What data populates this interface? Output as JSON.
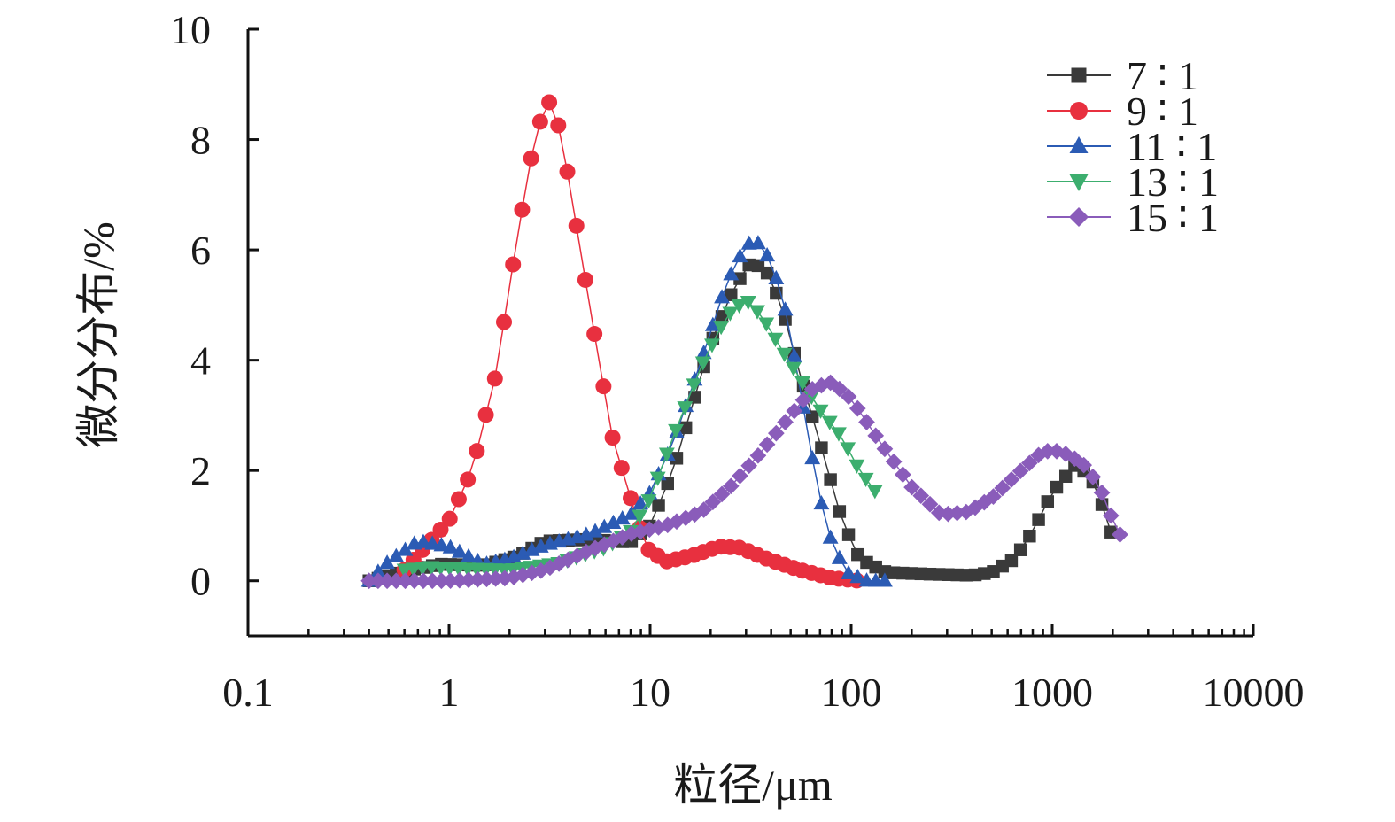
{
  "chart_data": {
    "type": "scatter",
    "xlabel": "粒径/μm",
    "ylabel": "微分分布/%",
    "x_scale": "log",
    "xlim": [
      0.1,
      10000
    ],
    "ylim": [
      -1,
      10
    ],
    "x_ticks": [
      "0.1",
      "1",
      "10",
      "100",
      "1000",
      "10000"
    ],
    "y_ticks": [
      "0",
      "2",
      "4",
      "6",
      "8",
      "10"
    ],
    "grid": false,
    "legend_position": "top-right",
    "series": [
      {
        "name": "7 ∶ 1",
        "color": "#3a3a3a",
        "marker": "square",
        "anchors": [
          [
            0.4,
            0
          ],
          [
            0.6,
            0.18
          ],
          [
            0.9,
            0.3
          ],
          [
            1.5,
            0.28
          ],
          [
            2.2,
            0.45
          ],
          [
            3,
            0.72
          ],
          [
            5,
            0.75
          ],
          [
            8,
            0.7
          ],
          [
            10,
            1.0
          ],
          [
            13,
            2.0
          ],
          [
            20,
            4.3
          ],
          [
            26,
            5.3
          ],
          [
            32,
            5.8
          ],
          [
            38,
            5.6
          ],
          [
            45,
            5.0
          ],
          [
            55,
            3.8
          ],
          [
            70,
            2.5
          ],
          [
            90,
            1.1
          ],
          [
            110,
            0.4
          ],
          [
            150,
            0.15
          ],
          [
            250,
            0.12
          ],
          [
            400,
            0.1
          ],
          [
            500,
            0.15
          ],
          [
            650,
            0.4
          ],
          [
            800,
            0.9
          ],
          [
            1000,
            1.6
          ],
          [
            1300,
            2.1
          ],
          [
            1550,
            1.9
          ],
          [
            1850,
            1.2
          ],
          [
            2100,
            0.5
          ]
        ]
      },
      {
        "name": "9 ∶ 1",
        "color": "#e8303f",
        "marker": "circle",
        "anchors": [
          [
            0.6,
            0.2
          ],
          [
            0.8,
            0.7
          ],
          [
            1,
            1.1
          ],
          [
            1.3,
            2.0
          ],
          [
            1.7,
            3.7
          ],
          [
            2.2,
            6.3
          ],
          [
            2.6,
            7.8
          ],
          [
            3.0,
            8.65
          ],
          [
            3.3,
            8.7
          ],
          [
            3.8,
            7.6
          ],
          [
            4.5,
            6.0
          ],
          [
            5.5,
            4.1
          ],
          [
            6.5,
            2.6
          ],
          [
            8,
            1.5
          ],
          [
            9.5,
            0.6
          ],
          [
            12,
            0.35
          ],
          [
            16,
            0.45
          ],
          [
            22,
            0.62
          ],
          [
            28,
            0.6
          ],
          [
            38,
            0.4
          ],
          [
            55,
            0.2
          ],
          [
            80,
            0.05
          ],
          [
            110,
            0
          ]
        ]
      },
      {
        "name": "11 ∶ 1",
        "color": "#2b5bb4",
        "marker": "triangle-up",
        "anchors": [
          [
            0.4,
            0
          ],
          [
            0.5,
            0.35
          ],
          [
            0.7,
            0.72
          ],
          [
            1,
            0.62
          ],
          [
            1.5,
            0.3
          ],
          [
            2,
            0.4
          ],
          [
            3,
            0.65
          ],
          [
            5,
            0.85
          ],
          [
            8,
            1.2
          ],
          [
            10,
            1.6
          ],
          [
            13,
            2.5
          ],
          [
            18,
            4.0
          ],
          [
            24,
            5.4
          ],
          [
            30,
            6.1
          ],
          [
            34,
            6.15
          ],
          [
            40,
            5.8
          ],
          [
            48,
            4.8
          ],
          [
            55,
            3.6
          ],
          [
            62,
            2.5
          ],
          [
            70,
            1.5
          ],
          [
            80,
            0.7
          ],
          [
            95,
            0.15
          ],
          [
            120,
            0
          ],
          [
            150,
            0
          ]
        ]
      },
      {
        "name": "13 ∶ 1",
        "color": "#3cae6e",
        "marker": "triangle-down",
        "anchors": [
          [
            0.6,
            0.2
          ],
          [
            0.8,
            0.25
          ],
          [
            1.2,
            0.22
          ],
          [
            2,
            0.2
          ],
          [
            3.5,
            0.32
          ],
          [
            6,
            0.6
          ],
          [
            8,
            0.9
          ],
          [
            10,
            1.5
          ],
          [
            13,
            2.6
          ],
          [
            18,
            3.9
          ],
          [
            24,
            4.8
          ],
          [
            30,
            5.1
          ],
          [
            36,
            4.8
          ],
          [
            45,
            4.2
          ],
          [
            55,
            3.7
          ],
          [
            70,
            3.1
          ],
          [
            90,
            2.6
          ],
          [
            110,
            2.0
          ],
          [
            140,
            1.5
          ]
        ]
      },
      {
        "name": "15 ∶ 1",
        "color": "#8a5cba",
        "marker": "diamond",
        "anchors": [
          [
            0.4,
            0
          ],
          [
            1,
            0
          ],
          [
            2,
            0.05
          ],
          [
            3,
            0.2
          ],
          [
            5,
            0.55
          ],
          [
            8,
            0.85
          ],
          [
            12,
            1.0
          ],
          [
            18,
            1.25
          ],
          [
            25,
            1.7
          ],
          [
            35,
            2.3
          ],
          [
            50,
            3.0
          ],
          [
            65,
            3.5
          ],
          [
            80,
            3.6
          ],
          [
            100,
            3.3
          ],
          [
            140,
            2.5
          ],
          [
            200,
            1.7
          ],
          [
            280,
            1.2
          ],
          [
            380,
            1.25
          ],
          [
            500,
            1.5
          ],
          [
            700,
            2.0
          ],
          [
            900,
            2.35
          ],
          [
            1100,
            2.35
          ],
          [
            1400,
            2.15
          ],
          [
            1700,
            1.75
          ],
          [
            2000,
            1.1
          ],
          [
            2200,
            0.8
          ]
        ]
      }
    ]
  }
}
